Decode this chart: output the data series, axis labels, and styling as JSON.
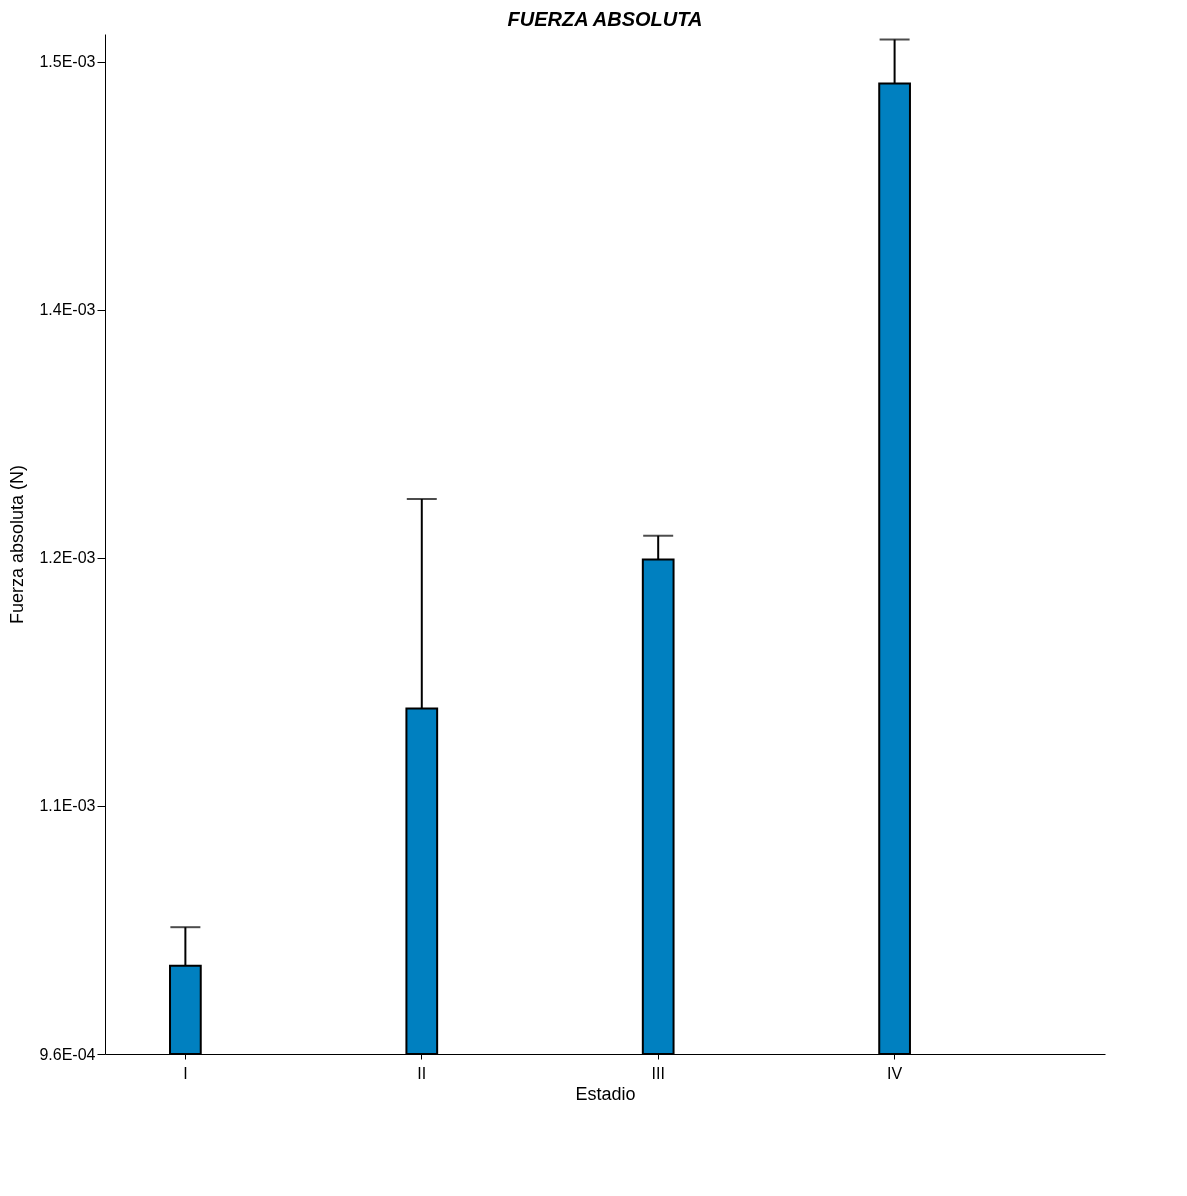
{
  "chart_data": {
    "type": "bar",
    "title": "FUERZA  ABSOLUTA",
    "xlabel": "Estadio",
    "ylabel": "Fuerza absoluta (N)",
    "categories": [
      "I",
      "II",
      "III",
      "IV"
    ],
    "values": [
      0.001008,
      0.001148,
      0.001229,
      0.001488
    ],
    "errors": [
      [
        0.001008,
        0.001029
      ],
      [
        0.001148,
        0.001262
      ],
      [
        0.001229,
        0.001242
      ],
      [
        0.001488,
        0.001512
      ]
    ],
    "color": "#0080c0",
    "ylim": [
      0.00096,
      0.001515
    ],
    "yticks": [
      {
        "value": 0.00096,
        "label": "9.6E-04"
      },
      {
        "value": 0.001095,
        "label": "1.1E-03"
      },
      {
        "value": 0.00123,
        "label": "1.2E-03"
      },
      {
        "value": 0.001365,
        "label": "1.4E-03"
      },
      {
        "value": 0.0015,
        "label": "1.5E-03"
      }
    ],
    "legend": false
  }
}
